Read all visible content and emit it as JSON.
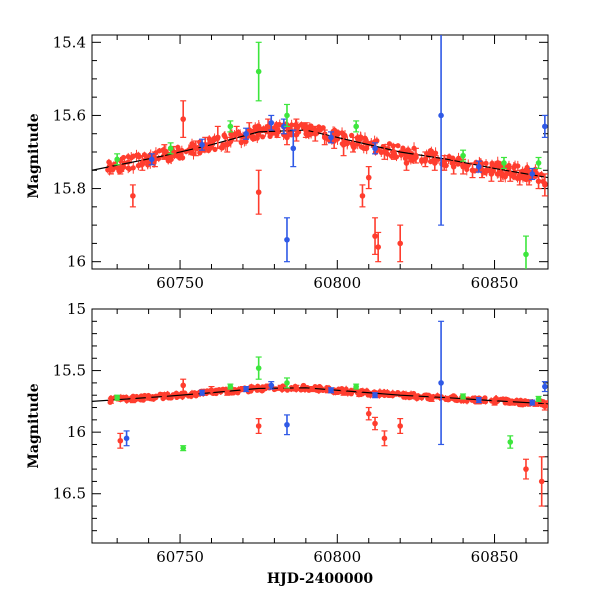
{
  "chart_data": [
    {
      "type": "scatter",
      "title": "",
      "xlabel": "",
      "ylabel": "Magnitude",
      "xlim": [
        60722,
        60867
      ],
      "ylim": [
        16.02,
        15.38
      ],
      "y_inverted": true,
      "x_ticks": [
        60750,
        60800,
        60850
      ],
      "y_ticks": [
        15.4,
        15.6,
        15.8,
        16
      ],
      "y_tick_labels": [
        "15.4",
        "15.6",
        "15.8",
        "16"
      ],
      "trend": [
        [
          60722,
          15.75
        ],
        [
          60745,
          15.71
        ],
        [
          60760,
          15.68
        ],
        [
          60775,
          15.645
        ],
        [
          60790,
          15.64
        ],
        [
          60805,
          15.67
        ],
        [
          60820,
          15.7
        ],
        [
          60835,
          15.72
        ],
        [
          60850,
          15.745
        ],
        [
          60867,
          15.77
        ]
      ],
      "series": [
        {
          "color": "#ff3d2e",
          "points": [
            [
              60728,
              15.745,
              0.015
            ],
            [
              60731,
              15.74,
              0.02
            ],
            [
              60735,
              15.82,
              0.03
            ],
            [
              60738,
              15.73,
              0.02
            ],
            [
              60742,
              15.72,
              0.02
            ],
            [
              60745,
              15.7,
              0.02
            ],
            [
              60748,
              15.7,
              0.015
            ],
            [
              60751,
              15.61,
              0.05
            ],
            [
              60755,
              15.69,
              0.02
            ],
            [
              60758,
              15.68,
              0.02
            ],
            [
              60762,
              15.66,
              0.03
            ],
            [
              60765,
              15.68,
              0.02
            ],
            [
              60768,
              15.65,
              0.02
            ],
            [
              60772,
              15.64,
              0.02
            ],
            [
              60775,
              15.81,
              0.06
            ],
            [
              60778,
              15.63,
              0.02
            ],
            [
              60781,
              15.64,
              0.02
            ],
            [
              60784,
              15.66,
              0.02
            ],
            [
              60787,
              15.64,
              0.03
            ],
            [
              60790,
              15.64,
              0.02
            ],
            [
              60793,
              15.65,
              0.02
            ],
            [
              60796,
              15.66,
              0.02
            ],
            [
              60799,
              15.67,
              0.02
            ],
            [
              60802,
              15.68,
              0.03
            ],
            [
              60805,
              15.68,
              0.02
            ],
            [
              60808,
              15.82,
              0.03
            ],
            [
              60810,
              15.77,
              0.03
            ],
            [
              60812,
              15.93,
              0.05
            ],
            [
              60813,
              15.96,
              0.04
            ],
            [
              60815,
              15.7,
              0.02
            ],
            [
              60818,
              15.7,
              0.02
            ],
            [
              60820,
              15.95,
              0.05
            ],
            [
              60822,
              15.73,
              0.02
            ],
            [
              60825,
              15.71,
              0.02
            ],
            [
              60828,
              15.72,
              0.02
            ],
            [
              60831,
              15.73,
              0.02
            ],
            [
              60834,
              15.73,
              0.02
            ],
            [
              60837,
              15.74,
              0.02
            ],
            [
              60840,
              15.74,
              0.02
            ],
            [
              60843,
              15.75,
              0.02
            ],
            [
              60846,
              15.75,
              0.02
            ],
            [
              60849,
              15.76,
              0.02
            ],
            [
              60852,
              15.76,
              0.02
            ],
            [
              60855,
              15.76,
              0.02
            ],
            [
              60858,
              15.77,
              0.02
            ],
            [
              60861,
              15.77,
              0.02
            ],
            [
              60864,
              15.78,
              0.02
            ],
            [
              60866,
              15.79,
              0.03
            ]
          ]
        },
        {
          "color": "#2f59e6",
          "points": [
            [
              60741,
              15.72,
              0.015
            ],
            [
              60757,
              15.68,
              0.015
            ],
            [
              60771,
              15.65,
              0.015
            ],
            [
              60779,
              15.62,
              0.02
            ],
            [
              60783,
              15.63,
              0.02
            ],
            [
              60784,
              15.94,
              0.06
            ],
            [
              60786,
              15.69,
              0.05
            ],
            [
              60798,
              15.66,
              0.015
            ],
            [
              60812,
              15.69,
              0.015
            ],
            [
              60833,
              15.6,
              0.3
            ],
            [
              60845,
              15.74,
              0.015
            ],
            [
              60862,
              15.76,
              0.015
            ],
            [
              60866,
              15.63,
              0.03
            ]
          ]
        },
        {
          "color": "#3de63d",
          "points": [
            [
              60730,
              15.72,
              0.015
            ],
            [
              60747,
              15.69,
              0.015
            ],
            [
              60766,
              15.63,
              0.015
            ],
            [
              60775,
              15.48,
              0.08
            ],
            [
              60784,
              15.6,
              0.03
            ],
            [
              60806,
              15.63,
              0.015
            ],
            [
              60840,
              15.71,
              0.015
            ],
            [
              60853,
              15.73,
              0.015
            ],
            [
              60860,
              15.98,
              0.05
            ],
            [
              60864,
              15.73,
              0.015
            ]
          ]
        }
      ]
    },
    {
      "type": "scatter",
      "title": "",
      "xlabel": "HJD-2400000",
      "ylabel": "Magnitude",
      "xlim": [
        60722,
        60867
      ],
      "ylim": [
        16.9,
        15.0
      ],
      "y_inverted": true,
      "x_ticks": [
        60750,
        60800,
        60850
      ],
      "y_ticks": [
        15,
        15.5,
        16,
        16.5
      ],
      "y_tick_labels": [
        "15",
        "15.5",
        "16",
        "16.5"
      ],
      "trend": [
        [
          60722,
          15.75
        ],
        [
          60745,
          15.71
        ],
        [
          60760,
          15.68
        ],
        [
          60775,
          15.645
        ],
        [
          60790,
          15.64
        ],
        [
          60805,
          15.67
        ],
        [
          60820,
          15.7
        ],
        [
          60835,
          15.72
        ],
        [
          60850,
          15.745
        ],
        [
          60867,
          15.77
        ]
      ],
      "series": [
        {
          "color": "#ff3d2e",
          "points": [
            [
              60728,
              15.745,
              0.02
            ],
            [
              60731,
              16.07,
              0.06
            ],
            [
              60735,
              15.74,
              0.02
            ],
            [
              60740,
              15.72,
              0.02
            ],
            [
              60745,
              15.7,
              0.02
            ],
            [
              60751,
              15.62,
              0.05
            ],
            [
              60755,
              15.69,
              0.02
            ],
            [
              60760,
              15.66,
              0.03
            ],
            [
              60765,
              15.68,
              0.02
            ],
            [
              60770,
              15.65,
              0.02
            ],
            [
              60775,
              15.95,
              0.06
            ],
            [
              60778,
              15.63,
              0.02
            ],
            [
              60782,
              15.64,
              0.02
            ],
            [
              60787,
              15.64,
              0.02
            ],
            [
              60792,
              15.65,
              0.02
            ],
            [
              60797,
              15.66,
              0.02
            ],
            [
              60802,
              15.68,
              0.02
            ],
            [
              60807,
              15.69,
              0.02
            ],
            [
              60810,
              15.85,
              0.05
            ],
            [
              60812,
              15.93,
              0.05
            ],
            [
              60815,
              16.05,
              0.06
            ],
            [
              60820,
              15.95,
              0.06
            ],
            [
              60825,
              15.71,
              0.02
            ],
            [
              60830,
              15.73,
              0.02
            ],
            [
              60835,
              15.73,
              0.02
            ],
            [
              60840,
              15.74,
              0.02
            ],
            [
              60845,
              15.75,
              0.02
            ],
            [
              60850,
              15.76,
              0.02
            ],
            [
              60855,
              15.76,
              0.02
            ],
            [
              60860,
              16.3,
              0.08
            ],
            [
              60863,
              15.77,
              0.02
            ],
            [
              60865,
              16.4,
              0.2
            ],
            [
              60866,
              15.79,
              0.03
            ]
          ]
        },
        {
          "color": "#2f59e6",
          "points": [
            [
              60733,
              16.05,
              0.06
            ],
            [
              60757,
              15.68,
              0.02
            ],
            [
              60771,
              15.65,
              0.02
            ],
            [
              60779,
              15.62,
              0.03
            ],
            [
              60784,
              15.94,
              0.08
            ],
            [
              60798,
              15.66,
              0.02
            ],
            [
              60812,
              15.7,
              0.02
            ],
            [
              60833,
              15.6,
              0.5
            ],
            [
              60845,
              15.74,
              0.02
            ],
            [
              60862,
              15.76,
              0.02
            ],
            [
              60866,
              15.63,
              0.04
            ]
          ]
        },
        {
          "color": "#3de63d",
          "points": [
            [
              60730,
              15.72,
              0.02
            ],
            [
              60751,
              16.13,
              0.02
            ],
            [
              60766,
              15.63,
              0.02
            ],
            [
              60775,
              15.48,
              0.09
            ],
            [
              60784,
              15.6,
              0.04
            ],
            [
              60806,
              15.63,
              0.02
            ],
            [
              60840,
              15.71,
              0.02
            ],
            [
              60855,
              16.08,
              0.05
            ],
            [
              60864,
              15.73,
              0.02
            ]
          ]
        }
      ]
    }
  ]
}
